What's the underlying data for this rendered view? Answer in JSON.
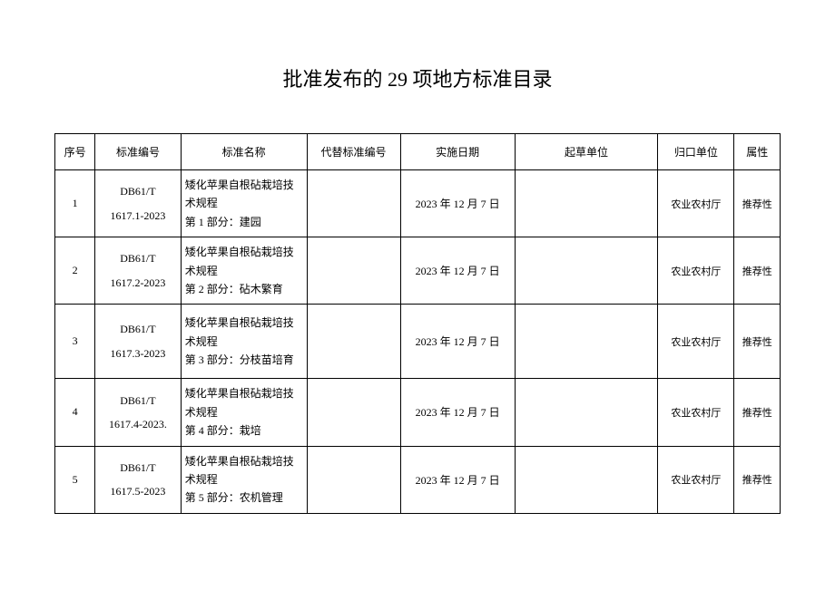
{
  "title": "批准发布的 29 项地方标准目录",
  "table": {
    "columns": {
      "seq": "序号",
      "code": "标准编号",
      "name": "标准名称",
      "replace": "代替标准编号",
      "date": "实施日期",
      "draft": "起草单位",
      "dept": "归口单位",
      "attr": "属性"
    },
    "rows": [
      {
        "seq": "1",
        "code": "DB61/T\n1617.1-2023",
        "name": "矮化苹果自根砧栽培技术规程\n第 1 部分：建园",
        "replace": "",
        "date": "2023 年 12 月 7 日",
        "draft": "",
        "dept": "农业农村厅",
        "attr": "推荐性"
      },
      {
        "seq": "2",
        "code": "DB61/T\n1617.2-2023",
        "name": "矮化苹果自根砧栽培技术规程\n第 2 部分：砧木繁育",
        "replace": "",
        "date": "2023 年 12 月 7 日",
        "draft": "",
        "dept": "农业农村厅",
        "attr": "推荐性"
      },
      {
        "seq": "3",
        "code": "DB61/T\n1617.3-2023",
        "name": "矮化苹果自根砧栽培技术规程\n第 3 部分：分枝苗培育",
        "replace": "",
        "date": "2023 年 12 月 7 日",
        "draft": "",
        "dept": "农业农村厅",
        "attr": "推荐性"
      },
      {
        "seq": "4",
        "code": "DB61/T\n1617.4-2023.",
        "name": "矮化苹果自根砧栽培技术规程\n第 4 部分：栽培",
        "replace": "",
        "date": "2023 年 12 月 7 日",
        "draft": "",
        "dept": "农业农村厅",
        "attr": "推荐性"
      },
      {
        "seq": "5",
        "code": "DB61/T\n1617.5-2023",
        "name": "矮化苹果自根砧栽培技术规程\n第 5 部分：农机管理",
        "replace": "",
        "date": "2023 年 12 月 7 日",
        "draft": "",
        "dept": "农业农村厅",
        "attr": "推荐性"
      }
    ]
  }
}
